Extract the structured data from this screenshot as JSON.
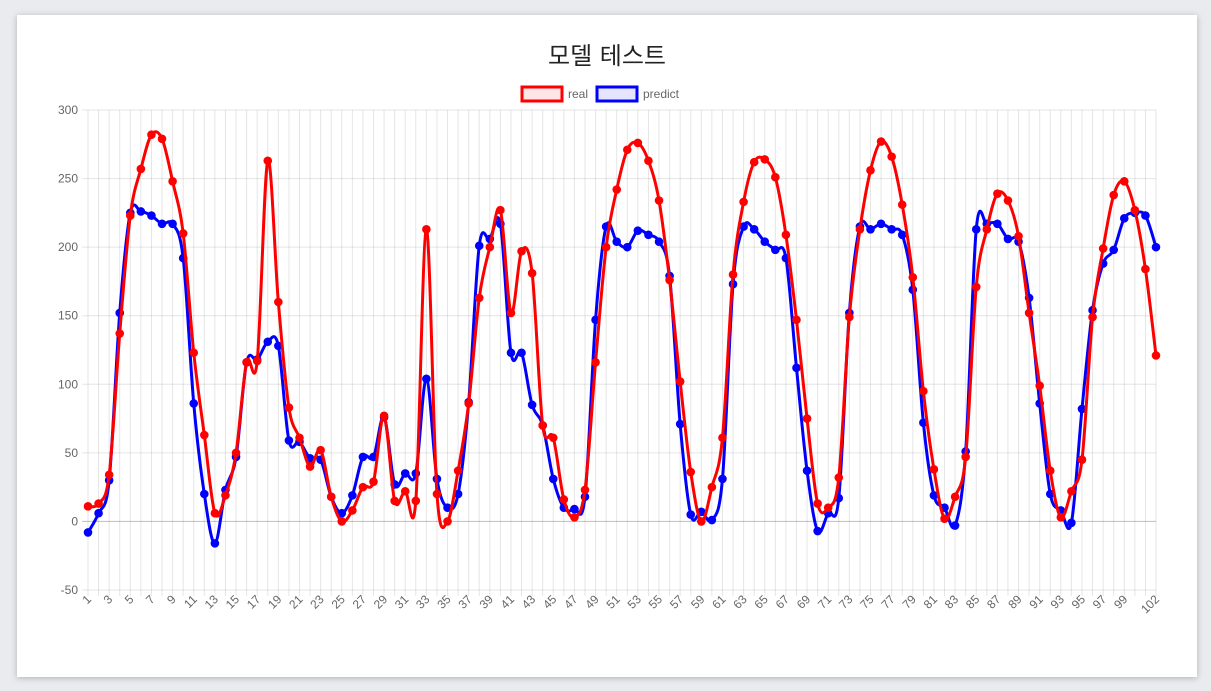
{
  "chart_data": {
    "type": "line",
    "title": "모델 테스트",
    "xlabel": "",
    "ylabel": "",
    "ylim": [
      -50,
      300
    ],
    "yticks": [
      -50,
      0,
      50,
      100,
      150,
      200,
      250,
      300
    ],
    "x": [
      1,
      2,
      3,
      4,
      5,
      6,
      7,
      8,
      9,
      10,
      11,
      12,
      13,
      14,
      15,
      16,
      17,
      18,
      19,
      20,
      21,
      22,
      23,
      24,
      25,
      26,
      27,
      28,
      29,
      30,
      31,
      32,
      33,
      34,
      35,
      36,
      37,
      38,
      39,
      40,
      41,
      42,
      43,
      44,
      45,
      46,
      47,
      48,
      49,
      50,
      51,
      52,
      53,
      54,
      55,
      56,
      57,
      58,
      59,
      60,
      61,
      62,
      63,
      64,
      65,
      66,
      67,
      68,
      69,
      70,
      71,
      72,
      73,
      74,
      75,
      76,
      77,
      78,
      79,
      80,
      81,
      82,
      83,
      84,
      85,
      86,
      87,
      88,
      89,
      90,
      91,
      92,
      93,
      94,
      95,
      96,
      97,
      98,
      99,
      100,
      101,
      102
    ],
    "xtick_labels": [
      "1",
      "3",
      "5",
      "7",
      "9",
      "11",
      "13",
      "15",
      "17",
      "19",
      "21",
      "23",
      "25",
      "27",
      "29",
      "31",
      "33",
      "35",
      "37",
      "39",
      "41",
      "43",
      "45",
      "47",
      "49",
      "51",
      "53",
      "55",
      "57",
      "59",
      "61",
      "63",
      "65",
      "67",
      "69",
      "71",
      "73",
      "75",
      "77",
      "79",
      "81",
      "83",
      "85",
      "87",
      "89",
      "91",
      "93",
      "95",
      "97",
      "99",
      "102"
    ],
    "grid": true,
    "legend_position": "top",
    "series": [
      {
        "name": "real",
        "color": "#ff0000",
        "values": [
          11,
          13,
          34,
          137,
          223,
          257,
          282,
          279,
          248,
          210,
          123,
          63,
          6,
          19,
          50,
          116,
          117,
          263,
          160,
          83,
          61,
          40,
          52,
          18,
          0,
          8,
          25,
          29,
          77,
          15,
          22,
          15,
          213,
          20,
          0,
          37,
          86,
          163,
          200,
          227,
          152,
          197,
          181,
          70,
          61,
          16,
          3,
          23,
          116,
          200,
          242,
          271,
          276,
          263,
          234,
          176,
          102,
          36,
          0,
          25,
          61,
          180,
          233,
          262,
          264,
          251,
          209,
          147,
          75,
          13,
          10,
          32,
          149,
          213,
          256,
          277,
          266,
          231,
          178,
          95,
          38,
          2,
          18,
          47,
          171,
          213,
          239,
          234,
          208,
          152,
          99,
          37,
          3,
          22,
          45,
          149,
          199,
          238,
          248,
          227,
          184,
          121
        ]
      },
      {
        "name": "predict",
        "color": "#0000ff",
        "values": [
          -8,
          6,
          30,
          152,
          225,
          226,
          223,
          217,
          217,
          192,
          86,
          20,
          -16,
          23,
          47,
          116,
          118,
          131,
          128,
          59,
          58,
          46,
          45,
          18,
          6,
          19,
          47,
          47,
          76,
          27,
          35,
          35,
          104,
          31,
          10,
          20,
          87,
          201,
          206,
          217,
          123,
          123,
          85,
          70,
          31,
          10,
          9,
          18,
          147,
          215,
          204,
          200,
          212,
          209,
          204,
          179,
          71,
          5,
          7,
          1,
          31,
          173,
          215,
          213,
          204,
          198,
          192,
          112,
          37,
          -7,
          6,
          17,
          152,
          215,
          213,
          217,
          213,
          209,
          169,
          72,
          19,
          10,
          -3,
          51,
          213,
          217,
          217,
          206,
          204,
          163,
          86,
          20,
          8,
          -1,
          82,
          154,
          188,
          198,
          221,
          225,
          223,
          200
        ]
      }
    ]
  }
}
